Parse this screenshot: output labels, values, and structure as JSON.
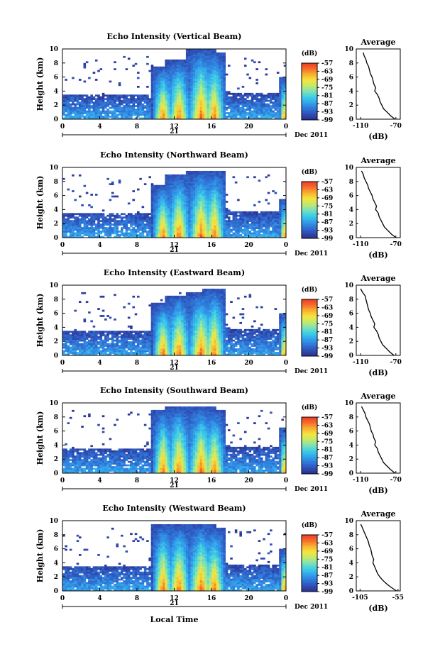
{
  "figure": {
    "xlabel_bottom": "Local Time",
    "date_label": "Dec 2011",
    "day_label": "21"
  },
  "colors": {
    "colormap": [
      "#2b2f8f",
      "#2f4fb5",
      "#2f78d9",
      "#32a3ec",
      "#3ccfe6",
      "#7ee0b8",
      "#c3ea6a",
      "#f6e43e",
      "#f9b12f",
      "#f66c2b",
      "#ef3a26"
    ],
    "noise": "#2e3190"
  },
  "chart_data": [
    {
      "type": "heatmap",
      "title": "Echo Intensity (Vertical Beam)",
      "ylabel": "Height (km)",
      "xlabel": "",
      "x_ticks": [
        "0",
        "4",
        "8",
        "12",
        "16",
        "20",
        "0"
      ],
      "y_ticks": [
        "0",
        "2",
        "4",
        "6",
        "8",
        "10"
      ],
      "xlim": [
        0,
        24
      ],
      "ylim": [
        0,
        10
      ],
      "colorbar_label": "(dB)",
      "colorbar_ticks": [
        "-57",
        "-63",
        "-69",
        "-75",
        "-81",
        "-87",
        "-93",
        "-99"
      ],
      "clim": [
        -99,
        -57
      ],
      "storm_cells": [
        {
          "center_hour": 10.8,
          "top_km": 7.5,
          "width_h": 1.2
        },
        {
          "center_hour": 12.5,
          "top_km": 8.5,
          "width_h": 1.4
        },
        {
          "center_hour": 14.9,
          "top_km": 10.0,
          "width_h": 1.6
        },
        {
          "center_hour": 16.3,
          "top_km": 9.5,
          "width_h": 1.3
        },
        {
          "center_hour": 23.8,
          "top_km": 6.0,
          "width_h": 0.5
        }
      ],
      "average_profile": {
        "title": "Average",
        "xlabel": "(dB)",
        "x_ticks": [
          "-110",
          "-70"
        ],
        "xlim": [
          -115,
          -65
        ],
        "y_ticks": [
          "0",
          "2",
          "4",
          "6",
          "8",
          "10"
        ],
        "height_km": [
          0,
          0.5,
          1,
          1.5,
          2,
          2.5,
          3,
          3.5,
          4,
          4.5,
          5,
          5.5,
          6,
          6.5,
          7,
          7.5,
          8,
          8.5,
          9,
          9.5
        ],
        "value_db": [
          -71,
          -76,
          -80,
          -84,
          -86,
          -88,
          -89,
          -91,
          -94,
          -93,
          -95,
          -96,
          -97,
          -99,
          -100,
          -101,
          -103,
          -104,
          -106,
          -107
        ]
      }
    },
    {
      "type": "heatmap",
      "title": "Echo Intensity (Northward Beam)",
      "ylabel": "Height (km)",
      "xlabel": "",
      "x_ticks": [
        "0",
        "4",
        "8",
        "12",
        "16",
        "20",
        "0"
      ],
      "y_ticks": [
        "0",
        "2",
        "4",
        "6",
        "8",
        "10"
      ],
      "xlim": [
        0,
        24
      ],
      "ylim": [
        0,
        10
      ],
      "colorbar_label": "(dB)",
      "colorbar_ticks": [
        "-57",
        "-63",
        "-69",
        "-75",
        "-81",
        "-87",
        "-93",
        "-99"
      ],
      "clim": [
        -99,
        -57
      ],
      "storm_cells": [
        {
          "center_hour": 10.8,
          "top_km": 7.5,
          "width_h": 1.2
        },
        {
          "center_hour": 12.5,
          "top_km": 9.0,
          "width_h": 1.4
        },
        {
          "center_hour": 14.9,
          "top_km": 9.5,
          "width_h": 1.6
        },
        {
          "center_hour": 16.3,
          "top_km": 9.5,
          "width_h": 1.3
        },
        {
          "center_hour": 23.8,
          "top_km": 5.5,
          "width_h": 0.5
        }
      ],
      "average_profile": {
        "title": "Average",
        "xlabel": "(dB)",
        "x_ticks": [
          "-110",
          "-70"
        ],
        "xlim": [
          -115,
          -65
        ],
        "y_ticks": [
          "0",
          "2",
          "4",
          "6",
          "8",
          "10"
        ],
        "height_km": [
          0,
          0.5,
          1,
          1.5,
          2,
          2.5,
          3,
          3.5,
          4,
          4.5,
          5,
          5.5,
          6,
          6.5,
          7,
          7.5,
          8,
          8.5,
          9,
          9.5
        ],
        "value_db": [
          -70,
          -75,
          -79,
          -83,
          -85,
          -87,
          -89,
          -90,
          -93,
          -92,
          -94,
          -96,
          -97,
          -99,
          -101,
          -102,
          -104,
          -106,
          -107,
          -109
        ]
      }
    },
    {
      "type": "heatmap",
      "title": "Echo Intensity (Eastward Beam)",
      "ylabel": "Height (km)",
      "xlabel": "",
      "x_ticks": [
        "0",
        "4",
        "8",
        "12",
        "16",
        "20",
        "0"
      ],
      "y_ticks": [
        "0",
        "2",
        "4",
        "6",
        "8",
        "10"
      ],
      "xlim": [
        0,
        24
      ],
      "ylim": [
        0,
        10
      ],
      "colorbar_label": "(dB)",
      "colorbar_ticks": [
        "-57",
        "-63",
        "-69",
        "-75",
        "-81",
        "-87",
        "-93",
        "-99"
      ],
      "clim": [
        -99,
        -57
      ],
      "storm_cells": [
        {
          "center_hour": 10.8,
          "top_km": 7.5,
          "width_h": 1.2
        },
        {
          "center_hour": 12.5,
          "top_km": 8.5,
          "width_h": 1.4
        },
        {
          "center_hour": 14.9,
          "top_km": 9.0,
          "width_h": 1.6
        },
        {
          "center_hour": 16.3,
          "top_km": 9.5,
          "width_h": 1.3
        },
        {
          "center_hour": 23.8,
          "top_km": 6.0,
          "width_h": 0.5
        }
      ],
      "average_profile": {
        "title": "Average",
        "xlabel": "(dB)",
        "x_ticks": [
          "-110",
          "-70"
        ],
        "xlim": [
          -115,
          -65
        ],
        "y_ticks": [
          "0",
          "2",
          "4",
          "6",
          "8",
          "10"
        ],
        "height_km": [
          0,
          0.5,
          1,
          1.5,
          2,
          2.5,
          3,
          3.5,
          4,
          4.5,
          5,
          5.5,
          6,
          6.5,
          7,
          7.5,
          8,
          8.5,
          9,
          9.5
        ],
        "value_db": [
          -72,
          -77,
          -81,
          -85,
          -87,
          -89,
          -90,
          -92,
          -95,
          -94,
          -96,
          -98,
          -99,
          -101,
          -102,
          -103,
          -104,
          -105,
          -108,
          -110
        ]
      }
    },
    {
      "type": "heatmap",
      "title": "Echo Intensity (Southward Beam)",
      "ylabel": "Height (km)",
      "xlabel": "",
      "x_ticks": [
        "0",
        "4",
        "8",
        "12",
        "16",
        "20",
        "0"
      ],
      "y_ticks": [
        "0",
        "2",
        "4",
        "6",
        "8",
        "10"
      ],
      "xlim": [
        0,
        24
      ],
      "ylim": [
        0,
        10
      ],
      "colorbar_label": "(dB)",
      "colorbar_ticks": [
        "-57",
        "-63",
        "-69",
        "-75",
        "-81",
        "-87",
        "-93",
        "-99"
      ],
      "clim": [
        -99,
        -57
      ],
      "storm_cells": [
        {
          "center_hour": 10.8,
          "top_km": 9.0,
          "width_h": 1.2
        },
        {
          "center_hour": 12.5,
          "top_km": 9.5,
          "width_h": 1.4
        },
        {
          "center_hour": 14.9,
          "top_km": 9.5,
          "width_h": 1.6
        },
        {
          "center_hour": 16.3,
          "top_km": 9.0,
          "width_h": 1.3
        },
        {
          "center_hour": 23.8,
          "top_km": 6.5,
          "width_h": 0.5
        }
      ],
      "average_profile": {
        "title": "Average",
        "xlabel": "(dB)",
        "x_ticks": [
          "-110",
          "-70"
        ],
        "xlim": [
          -115,
          -65
        ],
        "y_ticks": [
          "0",
          "2",
          "4",
          "6",
          "8",
          "10"
        ],
        "height_km": [
          0,
          0.5,
          1,
          1.5,
          2,
          2.5,
          3,
          3.5,
          4,
          4.5,
          5,
          5.5,
          6,
          6.5,
          7,
          7.5,
          8,
          8.5,
          9,
          9.5
        ],
        "value_db": [
          -71,
          -76,
          -80,
          -84,
          -86,
          -88,
          -90,
          -91,
          -94,
          -93,
          -95,
          -96,
          -98,
          -99,
          -100,
          -102,
          -104,
          -105,
          -107,
          -109
        ]
      }
    },
    {
      "type": "heatmap",
      "title": "Echo Intensity (Westward Beam)",
      "ylabel": "Height (km)",
      "xlabel": "Local Time",
      "x_ticks": [
        "0",
        "4",
        "8",
        "12",
        "16",
        "20",
        "0"
      ],
      "y_ticks": [
        "0",
        "2",
        "4",
        "6",
        "8",
        "10"
      ],
      "xlim": [
        0,
        24
      ],
      "ylim": [
        0,
        10
      ],
      "colorbar_label": "(dB)",
      "colorbar_ticks": [
        "-57",
        "-63",
        "-69",
        "-75",
        "-81",
        "-87",
        "-93",
        "-99"
      ],
      "clim": [
        -99,
        -57
      ],
      "storm_cells": [
        {
          "center_hour": 10.8,
          "top_km": 9.5,
          "width_h": 1.2
        },
        {
          "center_hour": 12.5,
          "top_km": 9.5,
          "width_h": 1.4
        },
        {
          "center_hour": 14.9,
          "top_km": 9.5,
          "width_h": 1.6
        },
        {
          "center_hour": 16.3,
          "top_km": 9.0,
          "width_h": 1.3
        },
        {
          "center_hour": 23.8,
          "top_km": 6.0,
          "width_h": 0.5
        }
      ],
      "average_profile": {
        "title": "Average",
        "xlabel": "(dB)",
        "x_ticks": [
          "-105",
          "-55"
        ],
        "xlim": [
          -110,
          -52
        ],
        "y_ticks": [
          "0",
          "2",
          "4",
          "6",
          "8",
          "10"
        ],
        "height_km": [
          0,
          0.5,
          1,
          1.5,
          2,
          2.5,
          3,
          3.5,
          4,
          4.5,
          5,
          5.5,
          6,
          6.5,
          7,
          7.5,
          8,
          8.5,
          9,
          9.5
        ],
        "value_db": [
          -57,
          -64,
          -70,
          -75,
          -79,
          -82,
          -84,
          -86,
          -88,
          -87,
          -89,
          -90,
          -91,
          -93,
          -94,
          -96,
          -98,
          -100,
          -102,
          -104
        ]
      }
    }
  ]
}
